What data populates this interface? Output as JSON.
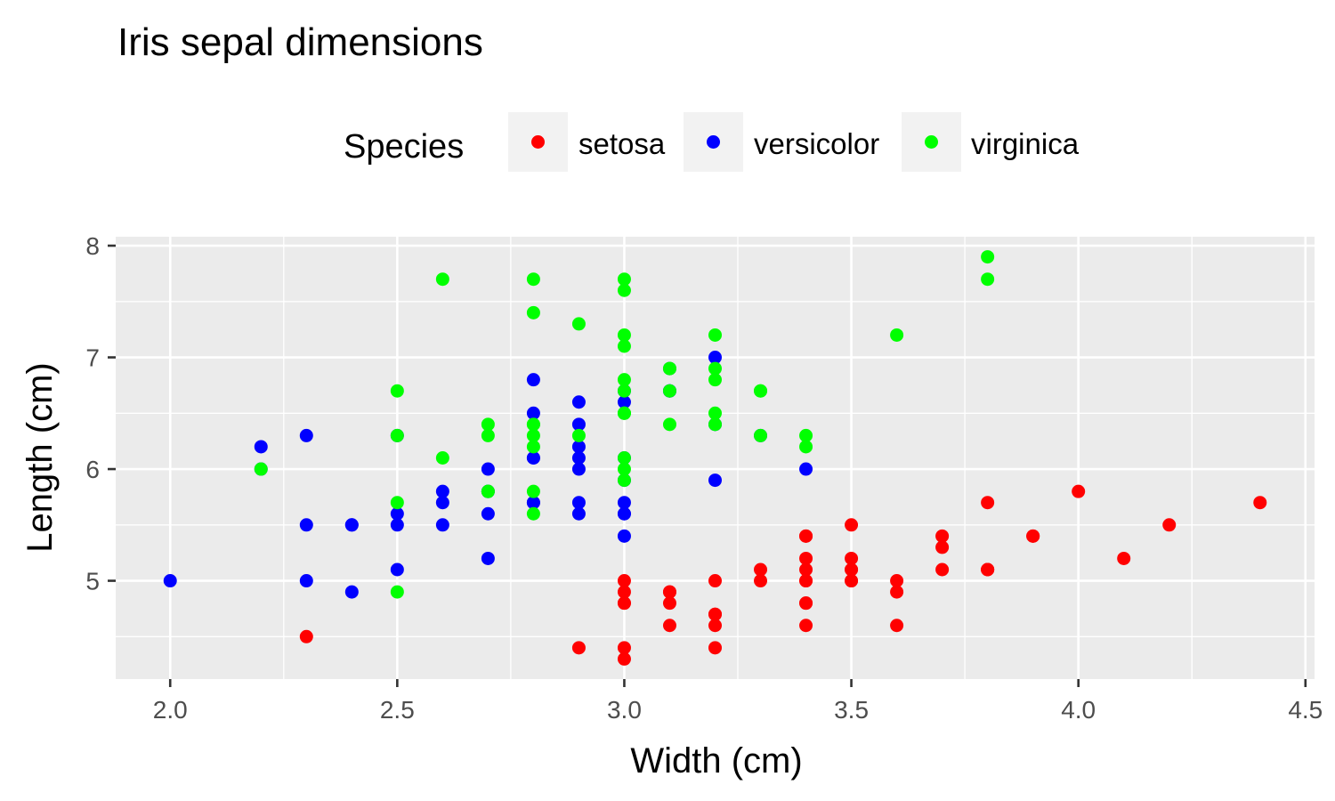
{
  "chart_data": {
    "type": "scatter",
    "title": "Iris sepal dimensions",
    "xlabel": "Width (cm)",
    "ylabel": "Length (cm)",
    "xlim": [
      1.88,
      4.52
    ],
    "ylim": [
      4.12,
      8.08
    ],
    "xticks": [
      2.0,
      2.5,
      3.0,
      3.5,
      4.0,
      4.5
    ],
    "xtick_labels": [
      "2.0",
      "2.5",
      "3.0",
      "3.5",
      "4.0",
      "4.5"
    ],
    "yticks": [
      5,
      6,
      7,
      8
    ],
    "ytick_labels": [
      "5",
      "6",
      "7",
      "8"
    ],
    "grid": true,
    "background": "#ebebeb",
    "legend": {
      "title": "Species",
      "placement": "top",
      "entries": [
        "setosa",
        "versicolor",
        "virginica"
      ]
    },
    "series": [
      {
        "name": "setosa",
        "color": "#ff0000",
        "points": [
          [
            3.5,
            5.1
          ],
          [
            3.0,
            4.9
          ],
          [
            3.2,
            4.7
          ],
          [
            3.1,
            4.6
          ],
          [
            3.6,
            5.0
          ],
          [
            3.9,
            5.4
          ],
          [
            3.4,
            4.6
          ],
          [
            3.4,
            5.0
          ],
          [
            2.9,
            4.4
          ],
          [
            3.1,
            4.9
          ],
          [
            3.7,
            5.4
          ],
          [
            3.4,
            4.8
          ],
          [
            3.0,
            4.8
          ],
          [
            3.0,
            4.3
          ],
          [
            4.0,
            5.8
          ],
          [
            4.4,
            5.7
          ],
          [
            3.9,
            5.4
          ],
          [
            3.5,
            5.1
          ],
          [
            3.8,
            5.7
          ],
          [
            3.8,
            5.1
          ],
          [
            3.4,
            5.4
          ],
          [
            3.7,
            5.1
          ],
          [
            3.6,
            4.6
          ],
          [
            3.3,
            5.1
          ],
          [
            3.4,
            4.8
          ],
          [
            3.0,
            5.0
          ],
          [
            3.4,
            5.0
          ],
          [
            3.5,
            5.2
          ],
          [
            3.4,
            5.2
          ],
          [
            3.2,
            4.7
          ],
          [
            3.1,
            4.8
          ],
          [
            3.4,
            5.4
          ],
          [
            4.1,
            5.2
          ],
          [
            4.2,
            5.5
          ],
          [
            3.1,
            4.9
          ],
          [
            3.2,
            5.0
          ],
          [
            3.5,
            5.5
          ],
          [
            3.6,
            4.9
          ],
          [
            3.0,
            4.4
          ],
          [
            3.4,
            5.1
          ],
          [
            3.5,
            5.0
          ],
          [
            2.3,
            4.5
          ],
          [
            3.2,
            4.4
          ],
          [
            3.5,
            5.0
          ],
          [
            3.8,
            5.1
          ],
          [
            3.0,
            4.8
          ],
          [
            3.8,
            5.1
          ],
          [
            3.2,
            4.6
          ],
          [
            3.7,
            5.3
          ],
          [
            3.3,
            5.0
          ]
        ]
      },
      {
        "name": "versicolor",
        "color": "#0000ff",
        "points": [
          [
            3.2,
            7.0
          ],
          [
            3.2,
            6.4
          ],
          [
            3.1,
            6.9
          ],
          [
            2.3,
            5.5
          ],
          [
            2.8,
            6.5
          ],
          [
            2.8,
            5.7
          ],
          [
            3.3,
            6.3
          ],
          [
            2.4,
            4.9
          ],
          [
            2.9,
            6.6
          ],
          [
            2.7,
            5.2
          ],
          [
            2.0,
            5.0
          ],
          [
            3.0,
            5.9
          ],
          [
            2.2,
            6.0
          ],
          [
            2.9,
            6.1
          ],
          [
            2.9,
            5.6
          ],
          [
            3.1,
            6.7
          ],
          [
            3.0,
            5.6
          ],
          [
            2.7,
            5.8
          ],
          [
            2.2,
            6.2
          ],
          [
            2.5,
            5.6
          ],
          [
            3.2,
            5.9
          ],
          [
            2.8,
            6.1
          ],
          [
            2.5,
            6.3
          ],
          [
            2.8,
            6.1
          ],
          [
            2.9,
            6.4
          ],
          [
            3.0,
            6.6
          ],
          [
            2.8,
            6.8
          ],
          [
            3.0,
            6.7
          ],
          [
            2.9,
            6.0
          ],
          [
            2.6,
            5.7
          ],
          [
            2.4,
            5.5
          ],
          [
            2.4,
            5.5
          ],
          [
            2.7,
            5.8
          ],
          [
            2.7,
            6.0
          ],
          [
            3.0,
            5.4
          ],
          [
            3.4,
            6.0
          ],
          [
            3.1,
            6.7
          ],
          [
            2.3,
            6.3
          ],
          [
            3.0,
            5.6
          ],
          [
            2.5,
            5.5
          ],
          [
            2.6,
            5.5
          ],
          [
            3.0,
            6.1
          ],
          [
            2.6,
            5.8
          ],
          [
            2.3,
            5.0
          ],
          [
            2.7,
            5.6
          ],
          [
            3.0,
            5.7
          ],
          [
            2.9,
            5.7
          ],
          [
            2.9,
            6.2
          ],
          [
            2.5,
            5.1
          ],
          [
            2.8,
            5.7
          ]
        ]
      },
      {
        "name": "virginica",
        "color": "#00ff00",
        "points": [
          [
            3.3,
            6.3
          ],
          [
            2.7,
            5.8
          ],
          [
            3.0,
            7.1
          ],
          [
            2.9,
            6.3
          ],
          [
            3.0,
            6.5
          ],
          [
            3.0,
            7.6
          ],
          [
            2.5,
            4.9
          ],
          [
            2.9,
            7.3
          ],
          [
            2.5,
            6.7
          ],
          [
            3.6,
            7.2
          ],
          [
            3.2,
            6.5
          ],
          [
            2.7,
            6.4
          ],
          [
            3.0,
            6.8
          ],
          [
            2.5,
            5.7
          ],
          [
            2.8,
            5.8
          ],
          [
            3.2,
            6.4
          ],
          [
            3.0,
            6.5
          ],
          [
            3.8,
            7.7
          ],
          [
            2.6,
            7.7
          ],
          [
            2.2,
            6.0
          ],
          [
            3.2,
            6.9
          ],
          [
            2.8,
            5.6
          ],
          [
            2.8,
            7.7
          ],
          [
            2.7,
            6.3
          ],
          [
            3.3,
            6.7
          ],
          [
            3.2,
            7.2
          ],
          [
            2.8,
            6.2
          ],
          [
            3.0,
            6.1
          ],
          [
            2.8,
            6.4
          ],
          [
            3.0,
            7.2
          ],
          [
            2.8,
            7.4
          ],
          [
            3.8,
            7.9
          ],
          [
            2.8,
            6.4
          ],
          [
            2.8,
            6.3
          ],
          [
            2.6,
            6.1
          ],
          [
            3.0,
            7.7
          ],
          [
            3.4,
            6.3
          ],
          [
            3.1,
            6.4
          ],
          [
            3.0,
            6.0
          ],
          [
            3.1,
            6.9
          ],
          [
            3.1,
            6.7
          ],
          [
            3.1,
            6.9
          ],
          [
            2.7,
            5.8
          ],
          [
            3.2,
            6.8
          ],
          [
            3.3,
            6.7
          ],
          [
            3.0,
            6.7
          ],
          [
            2.5,
            6.3
          ],
          [
            3.0,
            6.5
          ],
          [
            3.4,
            6.2
          ],
          [
            3.0,
            5.9
          ]
        ]
      }
    ]
  }
}
